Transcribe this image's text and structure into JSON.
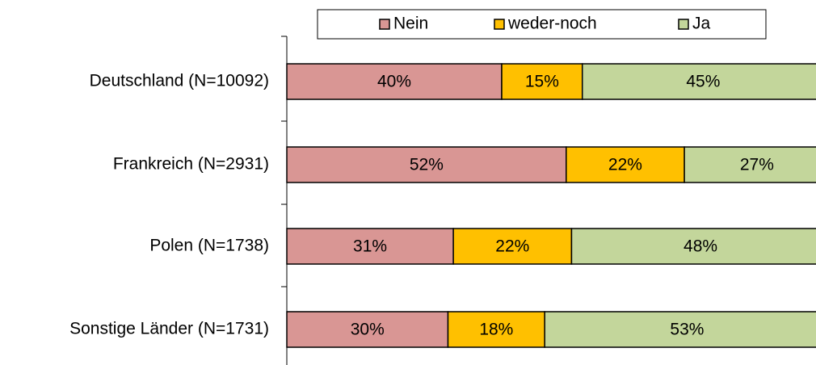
{
  "chart_data": {
    "type": "stacked-bar-horizontal",
    "categories": [
      "Deutschland (N=10092)",
      "Frankreich (N=2931)",
      "Polen (N=1738)",
      "Sonstige Länder (N=1731)"
    ],
    "series": [
      {
        "name": "Nein",
        "color": "#d99694",
        "values": [
          40,
          52,
          31,
          30
        ],
        "value_labels": [
          "40%",
          "52%",
          "31%",
          "30%"
        ]
      },
      {
        "name": "weder-noch",
        "color": "#ffc000",
        "values": [
          15,
          22,
          22,
          18
        ],
        "value_labels": [
          "15%",
          "22%",
          "22%",
          "18%"
        ]
      },
      {
        "name": "Ja",
        "color": "#c3d69b",
        "values": [
          45,
          27,
          48,
          53
        ],
        "value_labels": [
          "45%",
          "27%",
          "48%",
          "53%"
        ]
      }
    ],
    "xlim": [
      0,
      100
    ],
    "legend": "top"
  }
}
